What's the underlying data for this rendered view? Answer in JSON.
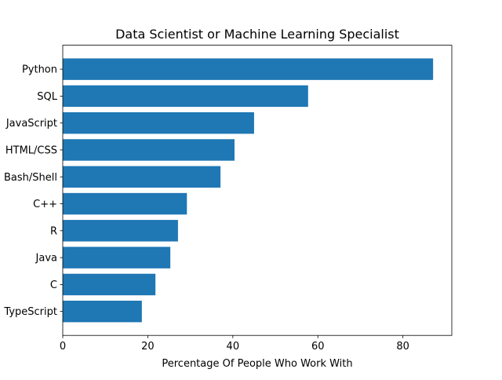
{
  "chart_data": {
    "type": "bar",
    "orientation": "horizontal",
    "title": "Data Scientist or Machine Learning Specialist",
    "xlabel": "Percentage Of People Who Work With",
    "ylabel": "",
    "categories": [
      "Python",
      "SQL",
      "JavaScript",
      "HTML/CSS",
      "Bash/Shell",
      "C++",
      "R",
      "Java",
      "C",
      "TypeScript"
    ],
    "values": [
      87.1,
      57.7,
      45.0,
      40.4,
      37.1,
      29.2,
      27.1,
      25.3,
      21.8,
      18.6
    ],
    "xlim": [
      0,
      91.5
    ],
    "xticks": [
      0,
      20,
      40,
      60,
      80
    ],
    "xtick_labels": [
      "0",
      "20",
      "40",
      "60",
      "80"
    ],
    "grid": false,
    "bar_color": "#1f77b4"
  }
}
